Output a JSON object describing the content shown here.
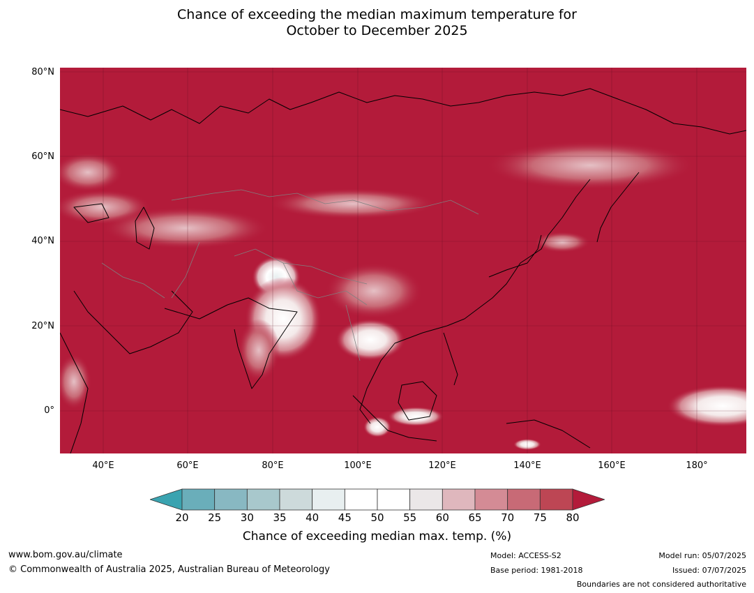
{
  "title": {
    "line1": "Chance of exceeding the median maximum temperature for",
    "line2": "October to December 2025"
  },
  "map": {
    "lat_ticks": [
      "80°N",
      "60°N",
      "40°N",
      "20°N",
      "0°"
    ],
    "lon_ticks": [
      "40°E",
      "60°E",
      "80°E",
      "100°E",
      "120°E",
      "140°E",
      "160°E",
      "180°"
    ],
    "lat_range": [
      -10,
      81
    ],
    "lon_range": [
      30,
      191
    ],
    "background_color": "#b31b3a"
  },
  "colorbar": {
    "ticks": [
      "20",
      "25",
      "30",
      "35",
      "40",
      "45",
      "50",
      "55",
      "60",
      "65",
      "70",
      "75",
      "80"
    ],
    "colors": [
      "#6aaeba",
      "#88b8c2",
      "#a8c8cc",
      "#cddadb",
      "#e8eff0",
      "#ffffff",
      "#ffffff",
      "#ebe7e8",
      "#dfb7bd",
      "#d48b95",
      "#c86a76",
      "#bd4654"
    ],
    "low_extend_color": "#3aa3b0",
    "high_extend_color": "#b31b3a",
    "label": "Chance of exceeding median max. temp. (%)"
  },
  "footer": {
    "website": "www.bom.gov.au/climate",
    "copyright": "© Commonwealth of Australia 2025, Australian Bureau of Meteorology",
    "model": "Model: ACCESS-S2",
    "base_period": "Base period: 1981-2018",
    "model_run": "Model run: 05/07/2025",
    "issued": "Issued: 07/07/2025",
    "disclaimer": "Boundaries are not considered authoritative"
  }
}
